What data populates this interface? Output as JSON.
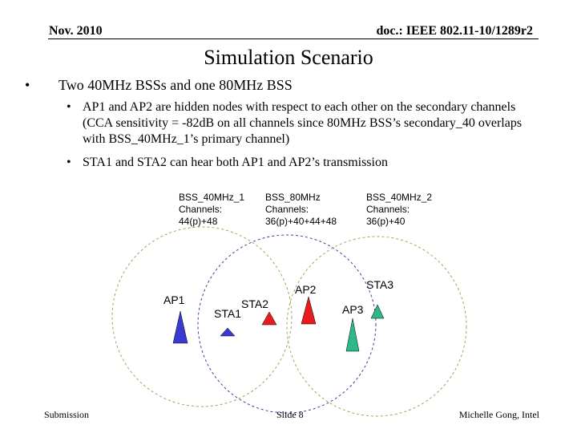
{
  "header": {
    "date": "Nov. 2010",
    "doc_id": "doc.: IEEE 802.11-10/1289r2"
  },
  "slide": {
    "title": "Simulation Scenario",
    "bullet_main": "Two 40MHz BSSs and one 80MHz BSS",
    "sub_bullets": [
      "AP1 and AP2 are hidden nodes with respect to each other on the secondary channels (CCA sensitivity = -82dB on all channels since 80MHz BSS’s secondary_40 overlaps with BSS_40MHz_1’s primary channel)",
      "STA1 and STA2 can hear both AP1 and AP2’s transmission"
    ]
  },
  "diagram": {
    "bss": [
      {
        "name": "BSS_40MHz_1",
        "channels_label": "Channels:",
        "channels": "44(p)+48",
        "circle_color": "#9aaa55"
      },
      {
        "name": "BSS_80MHz",
        "channels_label": "Channels:",
        "channels": "36(p)+40+44+48",
        "circle_color": "#3b3f9e"
      },
      {
        "name": "BSS_40MHz_2",
        "channels_label": "Channels:",
        "channels": "36(p)+40",
        "circle_color": "#9aaa55"
      }
    ],
    "nodes": {
      "ap1": {
        "label": "AP1",
        "color": "#3a3ad0"
      },
      "sta1": {
        "label": "STA1",
        "color": "#3a3ad0"
      },
      "sta2": {
        "label": "STA2",
        "color": "#e81c1c"
      },
      "ap2": {
        "label": "AP2",
        "color": "#e81c1c"
      },
      "sta3": {
        "label": "STA3",
        "color": "#2eb88a"
      },
      "ap3": {
        "label": "AP3",
        "color": "#2eb88a"
      }
    }
  },
  "footer": {
    "left": "Submission",
    "center": "Slide 8",
    "right": "Michelle Gong, Intel"
  }
}
